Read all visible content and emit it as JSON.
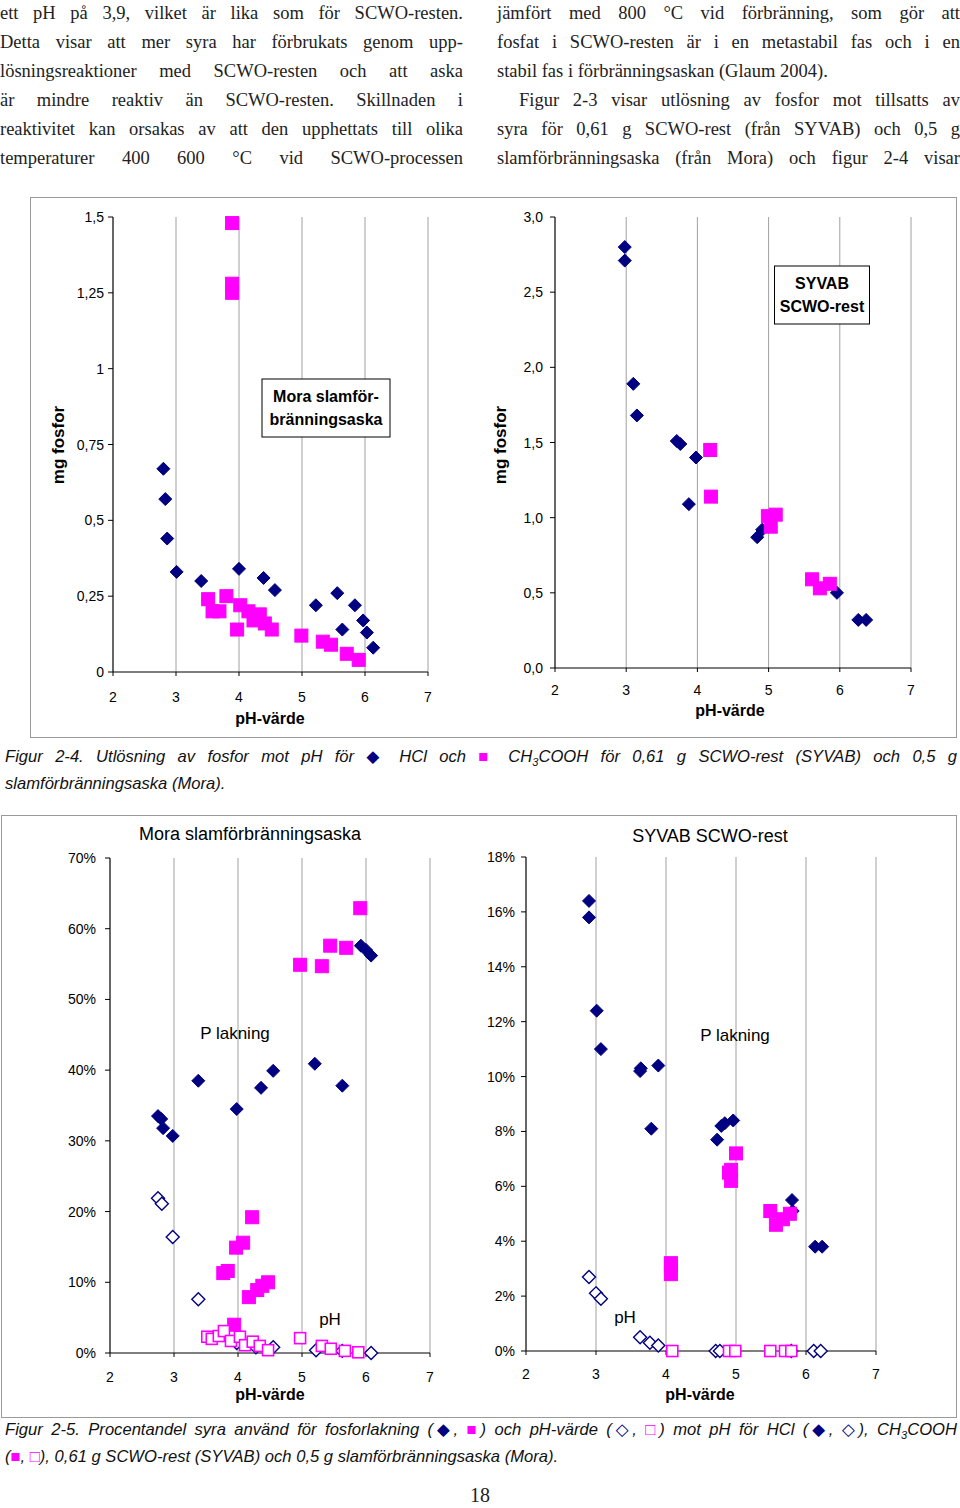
{
  "document": {
    "left_column": [
      "ett pH på 3,9, vilket är lika som för SCWO-resten.",
      "Detta visar att mer syra har förbrukats genom upp-",
      "lösningsreaktioner med SCWO-resten och att aska",
      "är mindre reaktiv än SCWO-resten. Skillnaden i",
      "reaktivitet kan orsakas av att den upphettats till olika",
      "temperaturer 400 600 °C vid SCWO-processen"
    ],
    "right_column": [
      "jämfört med 800 °C vid förbränning, som gör att",
      "fosfat i SCWO-resten är i en metastabil fas och i en",
      "stabil fas i förbränningsaskan (Glaum 2004).",
      "Figur 2-3 visar utlösning av fosfor mot tillsatts av",
      "syra för 0,61 g SCWO-rest (från SYVAB) och 0,5 g",
      "slamförbränningsaska (från Mora) och figur 2-4 visar"
    ],
    "captions": [
      [
        [
          {
            "t": "Figur 2-4. Utlösning av fosfor mot pH för "
          },
          {
            "t": "◆",
            "color": "#000080"
          },
          {
            "t": " HCl och "
          },
          {
            "t": "■",
            "color": "#ff00ff"
          },
          {
            "t": " CH"
          },
          {
            "t": "3",
            "sub": true
          },
          {
            "t": "COOH för 0,61 g SCWO-rest (SYVAB) och 0,5 g"
          }
        ],
        [
          {
            "t": "slamförbränningsaska (Mora)."
          }
        ]
      ],
      [
        [
          {
            "t": "Figur 2-5. Procentandel syra använd för fosforlakning ("
          },
          {
            "t": "◆",
            "color": "#000080"
          },
          {
            "t": ", "
          },
          {
            "t": "■",
            "color": "#ff00ff"
          },
          {
            "t": ") och pH-värde ("
          },
          {
            "t": "◇",
            "color": "#000080"
          },
          {
            "t": ", "
          },
          {
            "t": "□",
            "color": "#ff00ff"
          },
          {
            "t": ") mot pH för HCl ("
          },
          {
            "t": "◆",
            "color": "#000080"
          },
          {
            "t": ", "
          },
          {
            "t": "◇",
            "color": "#000080"
          },
          {
            "t": "), CH"
          },
          {
            "t": "3",
            "sub": true
          },
          {
            "t": "COOH"
          }
        ],
        [
          {
            "t": "("
          },
          {
            "t": "■",
            "color": "#ff00ff"
          },
          {
            "t": ", "
          },
          {
            "t": "□",
            "color": "#ff00ff"
          },
          {
            "t": "), 0,61 g SCWO-rest (SYVAB) och 0,5 g slamförbränningsaska (Mora)."
          }
        ]
      ]
    ],
    "page_number": "18"
  },
  "chart_data": [
    {
      "type": "scatter",
      "xlabel": "pH-värde",
      "ylabel": "mg fosfor",
      "annotations": [
        [
          "Mora slamför-",
          "bränningsaska"
        ]
      ],
      "xlim": [
        2,
        7
      ],
      "xticks": [
        2,
        3,
        4,
        5,
        6,
        7
      ],
      "ylim": [
        0,
        1.5
      ],
      "yticks": [
        0,
        {
          "value": 0.25,
          "label": "0,25"
        },
        {
          "value": 0.5,
          "label": "0,5"
        },
        {
          "value": 0.75,
          "label": "0,75"
        },
        1,
        {
          "value": 1.25,
          "label": "1,25"
        },
        {
          "value": 1.5,
          "label": "1,5"
        }
      ],
      "grid": true,
      "series": [
        {
          "color": "#000080",
          "marker": "diamond",
          "x": [
            2.8,
            2.83,
            2.86,
            3.01,
            3.4,
            4.0,
            4.39,
            4.57,
            5.22,
            5.56,
            5.64,
            5.84,
            5.97,
            6.03,
            6.13
          ],
          "values": [
            0.67,
            0.57,
            0.44,
            0.33,
            0.3,
            0.34,
            0.31,
            0.27,
            0.22,
            0.26,
            0.14,
            0.22,
            0.17,
            0.13,
            0.08
          ]
        },
        {
          "color": "#ff00ff",
          "marker": "square",
          "x": [
            3.89,
            3.89,
            3.89,
            3.51,
            3.58,
            3.69,
            3.8,
            3.97,
            4.02,
            4.15,
            4.23,
            4.33,
            4.41,
            4.52,
            4.99,
            5.33,
            5.46,
            5.71,
            5.9
          ],
          "values": [
            1.48,
            1.28,
            1.25,
            0.24,
            0.2,
            0.2,
            0.25,
            0.14,
            0.22,
            0.2,
            0.17,
            0.19,
            0.16,
            0.14,
            0.12,
            0.1,
            0.09,
            0.06,
            0.04
          ]
        }
      ]
    },
    {
      "type": "scatter",
      "xlabel": "pH-värde",
      "ylabel": "mg fosfor",
      "annotations": [
        [
          "SYVAB",
          "SCWO-rest"
        ]
      ],
      "xlim": [
        2,
        7
      ],
      "xticks": [
        2,
        3,
        4,
        5,
        6,
        7
      ],
      "ylim": [
        0,
        3
      ],
      "yticks": [
        {
          "value": 0,
          "label": "0,0"
        },
        {
          "value": 0.5,
          "label": "0,5"
        },
        {
          "value": 1,
          "label": "1,0"
        },
        {
          "value": 1.5,
          "label": "1,5"
        },
        {
          "value": 2,
          "label": "2,0"
        },
        {
          "value": 2.5,
          "label": "2,5"
        },
        {
          "value": 3,
          "label": "3,0"
        }
      ],
      "grid": true,
      "series": [
        {
          "color": "#000080",
          "marker": "diamond",
          "x": [
            2.98,
            2.98,
            3.1,
            3.15,
            3.71,
            3.76,
            3.98,
            3.88,
            4.84,
            4.91,
            5.02,
            5.96,
            6.26,
            6.37
          ],
          "values": [
            2.8,
            2.71,
            1.89,
            1.68,
            1.51,
            1.49,
            1.4,
            1.09,
            0.87,
            0.92,
            1.01,
            0.5,
            0.32,
            0.32
          ]
        },
        {
          "color": "#ff00ff",
          "marker": "square",
          "x": [
            4.18,
            4.19,
            4.99,
            5.1,
            5.03,
            5.61,
            5.72,
            5.86
          ],
          "values": [
            1.45,
            1.14,
            1.01,
            1.02,
            0.94,
            0.59,
            0.53,
            0.56
          ]
        }
      ]
    },
    {
      "type": "scatter",
      "title": "Mora slamförbränningsaska",
      "xlabel": "pH-värde",
      "annotations": [
        "P lakning",
        "pH"
      ],
      "xlim": [
        2,
        7
      ],
      "xticks": [
        2,
        3,
        4,
        5,
        6,
        7
      ],
      "ylim": [
        0,
        70
      ],
      "yticks": [
        {
          "value": 0,
          "label": "0%"
        },
        {
          "value": 10,
          "label": "10%"
        },
        {
          "value": 20,
          "label": "20%"
        },
        {
          "value": 30,
          "label": "30%"
        },
        {
          "value": 40,
          "label": "40%"
        },
        {
          "value": 50,
          "label": "50%"
        },
        {
          "value": 60,
          "label": "60%"
        },
        {
          "value": 70,
          "label": "70%"
        }
      ],
      "grid": true,
      "series": [
        {
          "color": "#000080",
          "marker": "diamond",
          "x": [
            2.75,
            2.8,
            2.83,
            2.98,
            3.38,
            3.98,
            4.36,
            4.55,
            5.2,
            5.63,
            5.92,
            6.0,
            6.08
          ],
          "values": [
            33.5,
            33.1,
            31.8,
            30.7,
            38.5,
            34.5,
            37.5,
            39.9,
            40.9,
            37.8,
            57.6,
            57.0,
            56.2
          ]
        },
        {
          "color": "#ff00ff",
          "marker": "square",
          "x": [
            3.77,
            3.84,
            3.97,
            4.08,
            4.22,
            4.17,
            4.3,
            4.38,
            4.47,
            3.94,
            4.97,
            5.31,
            5.44,
            5.69,
            5.91
          ],
          "values": [
            11.3,
            11.6,
            14.9,
            15.6,
            19.2,
            7.9,
            8.9,
            9.5,
            10.0,
            4.0,
            54.9,
            54.7,
            57.6,
            57.3,
            62.9
          ]
        },
        {
          "color": "#000080",
          "marker": "open-diamond",
          "x": [
            2.75,
            2.81,
            2.98,
            3.38,
            3.98,
            4.28,
            4.55,
            5.22,
            5.63,
            6.08
          ],
          "values": [
            21.9,
            21.1,
            16.4,
            7.6,
            1.4,
            0.8,
            0.8,
            0.4,
            0.3,
            0.0
          ]
        },
        {
          "color": "#ff00ff",
          "marker": "open-square",
          "x": [
            3.52,
            3.59,
            3.7,
            3.78,
            3.89,
            4.03,
            4.11,
            4.23,
            4.34,
            4.47,
            4.97,
            5.31,
            5.45,
            5.67,
            5.88
          ],
          "values": [
            2.3,
            2.0,
            2.4,
            3.1,
            1.7,
            2.3,
            1.1,
            1.6,
            1.0,
            0.4,
            2.1,
            1.0,
            0.6,
            0.3,
            0.1
          ]
        }
      ]
    },
    {
      "type": "scatter",
      "title": "SYVAB SCWO-rest",
      "xlabel": "pH-värde",
      "annotations": [
        "P lakning",
        "pH"
      ],
      "xlim": [
        2,
        7
      ],
      "xticks": [
        2,
        3,
        4,
        5,
        6,
        7
      ],
      "ylim": [
        0,
        18
      ],
      "yticks": [
        {
          "value": 0,
          "label": "0%"
        },
        {
          "value": 2,
          "label": "2%"
        },
        {
          "value": 4,
          "label": "4%"
        },
        {
          "value": 6,
          "label": "6%"
        },
        {
          "value": 8,
          "label": "8%"
        },
        {
          "value": 10,
          "label": "10%"
        },
        {
          "value": 12,
          "label": "12%"
        },
        {
          "value": 14,
          "label": "14%"
        },
        {
          "value": 16,
          "label": "16%"
        },
        {
          "value": 18,
          "label": "18%"
        }
      ],
      "grid": true,
      "series": [
        {
          "color": "#000080",
          "marker": "diamond",
          "x": [
            2.9,
            2.9,
            3.01,
            3.07,
            3.63,
            3.64,
            3.89,
            3.79,
            4.73,
            4.79,
            4.84,
            4.96,
            5.8,
            5.81,
            6.13,
            6.23
          ],
          "values": [
            16.4,
            15.8,
            12.4,
            11.0,
            10.2,
            10.3,
            10.4,
            8.1,
            7.7,
            8.2,
            8.3,
            8.4,
            5.5,
            5.1,
            3.8,
            3.8
          ]
        },
        {
          "color": "#ff00ff",
          "marker": "square",
          "x": [
            4.07,
            4.07,
            4.07,
            4.9,
            4.93,
            4.93,
            5.0,
            5.49,
            5.57,
            5.67,
            5.77
          ],
          "values": [
            3.2,
            3.1,
            2.8,
            6.5,
            6.2,
            6.6,
            7.2,
            5.1,
            4.6,
            4.8,
            5.0
          ]
        },
        {
          "color": "#000080",
          "marker": "open-diamond",
          "x": [
            2.9,
            3.0,
            3.07,
            3.63,
            3.77,
            3.89,
            4.71,
            4.77,
            5.79,
            6.11,
            6.21
          ],
          "values": [
            2.7,
            2.1,
            1.9,
            0.5,
            0.3,
            0.2,
            0,
            0,
            0,
            0,
            0
          ]
        },
        {
          "color": "#ff00ff",
          "marker": "open-square",
          "x": [
            4.09,
            4.9,
            4.99,
            5.49,
            5.7,
            5.79
          ],
          "values": [
            0,
            0,
            0,
            0,
            0,
            0
          ]
        }
      ]
    }
  ]
}
